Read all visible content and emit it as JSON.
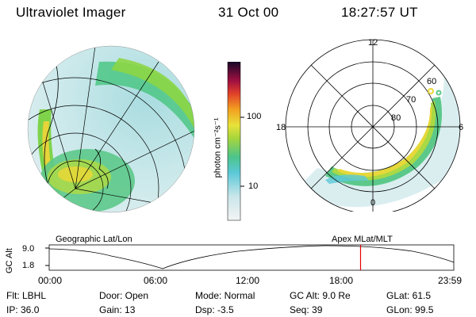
{
  "header": {
    "instrument": "Ultraviolet Imager",
    "date": "31 Oct 00",
    "time": "18:27:57 UT"
  },
  "colorbar": {
    "label": "photon cm⁻²s⁻¹",
    "ticks": [
      "100",
      "10"
    ]
  },
  "polar": {
    "mlt_labels": [
      "12",
      "18",
      "6",
      "0"
    ],
    "lat_labels": [
      "60",
      "70",
      "80"
    ]
  },
  "panel_labels": {
    "left": "Geographic Lat/Lon",
    "right": "Apex MLat/MLT"
  },
  "altitude_plot": {
    "ylabel": "GC Alt",
    "yticks": [
      "9.0",
      "1.8"
    ],
    "xticks": [
      "00:00",
      "06:00",
      "12:00",
      "18:00",
      "23:59"
    ],
    "current_marker_hour": 18.47,
    "marker_color": "#e00000"
  },
  "info": {
    "filter": "Flt: LBHL",
    "ip": "IP: 36.0",
    "door": "Door: Open",
    "gain": "Gain: 13",
    "mode": "Mode: Normal",
    "dsp": "Dsp:   -3.5",
    "gc_alt": "GC Alt: 9.0 Re",
    "seq": "Seq: 39",
    "glat": "GLat:  61.5",
    "glon": "GLon:  99.5"
  }
}
